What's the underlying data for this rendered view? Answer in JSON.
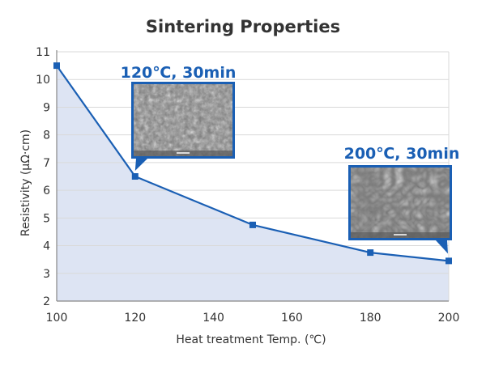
{
  "chart_data": {
    "type": "line",
    "title": "Sintering Properties",
    "xlabel": "Heat treatment Temp. (℃)",
    "ylabel": "Resistivity (μΩ·cm)",
    "x": [
      100,
      120,
      150,
      180,
      200
    ],
    "series": [
      {
        "values": [
          10.5,
          6.5,
          4.75,
          3.75,
          3.45
        ]
      }
    ],
    "xlim": [
      100,
      200
    ],
    "ylim": [
      2,
      11
    ],
    "xticks": [
      100,
      120,
      140,
      160,
      180,
      200
    ],
    "yticks": [
      2,
      3,
      4,
      5,
      6,
      7,
      8,
      9,
      10,
      11
    ],
    "grid": true,
    "area_fill": true,
    "colors": {
      "line": "#1a5fb4",
      "fill": "#dde4f3",
      "grid": "#d9d9d9",
      "annotation": "#1a5fb4"
    },
    "annotations": [
      {
        "text": "120℃, 30min",
        "x": 120,
        "y": 6.5,
        "image": "sem-micrograph"
      },
      {
        "text": "200℃, 30min",
        "x": 200,
        "y": 3.45,
        "image": "sem-micrograph"
      }
    ]
  }
}
